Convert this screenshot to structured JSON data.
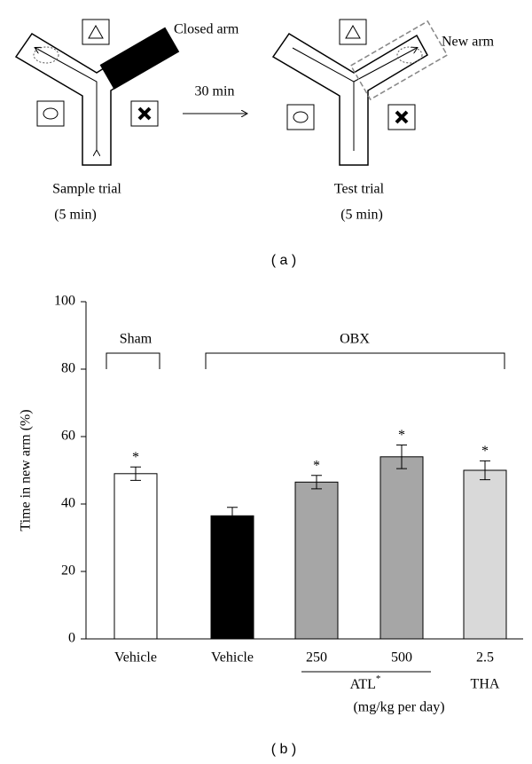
{
  "diagram": {
    "closed_arm": "Closed arm",
    "new_arm": "New arm",
    "interval": "30 min",
    "sample_trial": "Sample trial",
    "sample_duration": "(5 min)",
    "test_trial": "Test trial",
    "test_duration": "(5 min)",
    "panel_label": "( a )"
  },
  "chart_data": {
    "type": "bar",
    "panel_label": "( b )",
    "y_label": "Time in new arm (%)",
    "categories": [
      "Vehicle",
      "Vehicle",
      "250",
      "500",
      "2.5"
    ],
    "values": [
      49,
      36.5,
      46.5,
      54,
      50
    ],
    "errors": [
      2,
      2.5,
      2,
      3.5,
      2.8
    ],
    "colors": [
      "#ffffff",
      "#000000",
      "#a6a6a6",
      "#a6a6a6",
      "#d9d9d9"
    ],
    "annotations": [
      "*",
      null,
      "*",
      "*",
      "*"
    ],
    "groups": [
      {
        "label": "Sham"
      },
      {
        "label": "OBX"
      }
    ],
    "subgroups": [
      {
        "label": "ATL",
        "superscript": "*"
      },
      {
        "label": "THA"
      }
    ],
    "unit_label": "(mg/kg per day)",
    "ylim": [
      0,
      100
    ],
    "yticks": [
      0,
      20,
      40,
      60,
      80,
      100
    ]
  }
}
